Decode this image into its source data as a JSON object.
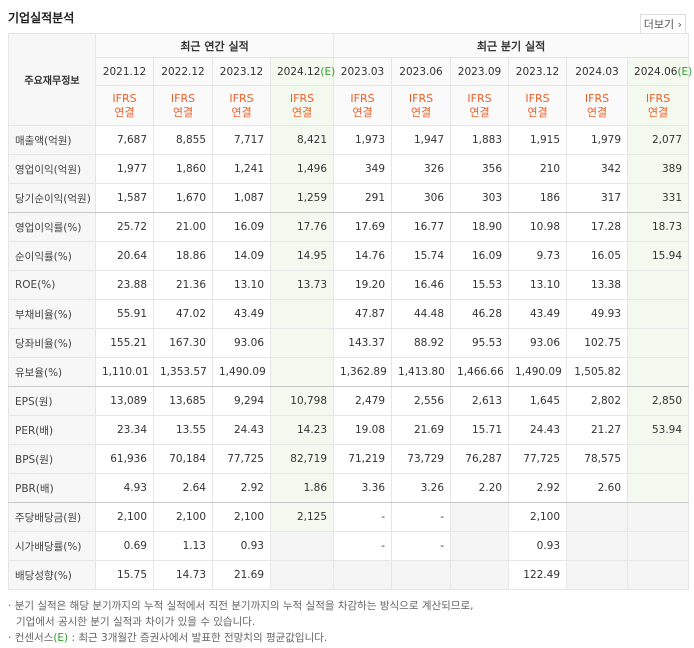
{
  "header": {
    "title": "기업실적분석",
    "more": "더보기"
  },
  "table": {
    "corner": "주요재무정보",
    "groups": [
      "최근 연간 실적",
      "최근 분기 실적"
    ],
    "columns": [
      {
        "period": "2021.12",
        "basis": "IFRS",
        "scope": "연결"
      },
      {
        "period": "2022.12",
        "basis": "IFRS",
        "scope": "연결"
      },
      {
        "period": "2023.12",
        "basis": "IFRS",
        "scope": "연결"
      },
      {
        "period": "2024.12",
        "estimate": "(E)",
        "basis": "IFRS",
        "scope": "연결"
      },
      {
        "period": "2023.03",
        "basis": "IFRS",
        "scope": "연결"
      },
      {
        "period": "2023.06",
        "basis": "IFRS",
        "scope": "연결"
      },
      {
        "period": "2023.09",
        "basis": "IFRS",
        "scope": "연결"
      },
      {
        "period": "2023.12",
        "basis": "IFRS",
        "scope": "연결"
      },
      {
        "period": "2024.03",
        "basis": "IFRS",
        "scope": "연결"
      },
      {
        "period": "2024.06",
        "estimate": "(E)",
        "basis": "IFRS",
        "scope": "연결"
      }
    ],
    "rows": [
      {
        "label": "매출액(억원)",
        "values": [
          "7,687",
          "8,855",
          "7,717",
          "8,421",
          "1,973",
          "1,947",
          "1,883",
          "1,915",
          "1,979",
          "2,077"
        ]
      },
      {
        "label": "영업이익(억원)",
        "values": [
          "1,977",
          "1,860",
          "1,241",
          "1,496",
          "349",
          "326",
          "356",
          "210",
          "342",
          "389"
        ]
      },
      {
        "label": "당기순이익(억원)",
        "values": [
          "1,587",
          "1,670",
          "1,087",
          "1,259",
          "291",
          "306",
          "303",
          "186",
          "317",
          "331"
        ]
      },
      {
        "label": "영업이익률(%)",
        "values": [
          "25.72",
          "21.00",
          "16.09",
          "17.76",
          "17.69",
          "16.77",
          "18.90",
          "10.98",
          "17.28",
          "18.73"
        ]
      },
      {
        "label": "순이익률(%)",
        "values": [
          "20.64",
          "18.86",
          "14.09",
          "14.95",
          "14.76",
          "15.74",
          "16.09",
          "9.73",
          "16.05",
          "15.94"
        ]
      },
      {
        "label": "ROE(%)",
        "values": [
          "23.88",
          "21.36",
          "13.10",
          "13.73",
          "19.20",
          "16.46",
          "15.53",
          "13.10",
          "13.38",
          null
        ]
      },
      {
        "label": "부채비율(%)",
        "values": [
          "55.91",
          "47.02",
          "43.49",
          null,
          "47.87",
          "44.48",
          "46.28",
          "43.49",
          "49.93",
          null
        ]
      },
      {
        "label": "당좌비율(%)",
        "values": [
          "155.21",
          "167.30",
          "93.06",
          null,
          "143.37",
          "88.92",
          "95.53",
          "93.06",
          "102.75",
          null
        ]
      },
      {
        "label": "유보율(%)",
        "values": [
          "1,110.01",
          "1,353.57",
          "1,490.09",
          null,
          "1,362.89",
          "1,413.80",
          "1,466.66",
          "1,490.09",
          "1,505.82",
          null
        ]
      },
      {
        "label": "EPS(원)",
        "values": [
          "13,089",
          "13,685",
          "9,294",
          "10,798",
          "2,479",
          "2,556",
          "2,613",
          "1,645",
          "2,802",
          "2,850"
        ]
      },
      {
        "label": "PER(배)",
        "values": [
          "23.34",
          "13.55",
          "24.43",
          "14.23",
          "19.08",
          "21.69",
          "15.71",
          "24.43",
          "21.27",
          "53.94"
        ]
      },
      {
        "label": "BPS(원)",
        "values": [
          "61,936",
          "70,184",
          "77,725",
          "82,719",
          "71,219",
          "73,729",
          "76,287",
          "77,725",
          "78,575",
          null
        ]
      },
      {
        "label": "PBR(배)",
        "values": [
          "4.93",
          "2.64",
          "2.92",
          "1.86",
          "3.36",
          "3.26",
          "2.20",
          "2.92",
          "2.60",
          null
        ]
      },
      {
        "label": "주당배당금(원)",
        "values": [
          "2,100",
          "2,100",
          "2,100",
          "2,125",
          "-",
          "-",
          null,
          "2,100",
          null,
          null
        ]
      },
      {
        "label": "시가배당률(%)",
        "values": [
          "0.69",
          "1.13",
          "0.93",
          null,
          "-",
          "-",
          null,
          "0.93",
          null,
          null
        ]
      },
      {
        "label": "배당성향(%)",
        "values": [
          "15.75",
          "14.73",
          "21.69",
          null,
          null,
          null,
          null,
          "122.49",
          null,
          null
        ]
      }
    ]
  },
  "notes": [
    {
      "lines": [
        "분기 실적은 해당 분기까지의 누적 실적에서 직전 분기까지의 누적 실적을 차감하는 방식으로 계산되므로,",
        "기업에서 공시한 분기 실적과 차이가 있을 수 있습니다."
      ]
    },
    {
      "lines": [
        "컨센서스",
        "(E)",
        " : 최근 3개월간 증권사에서 발표한 전망치의 평균값입니다."
      ]
    }
  ]
}
